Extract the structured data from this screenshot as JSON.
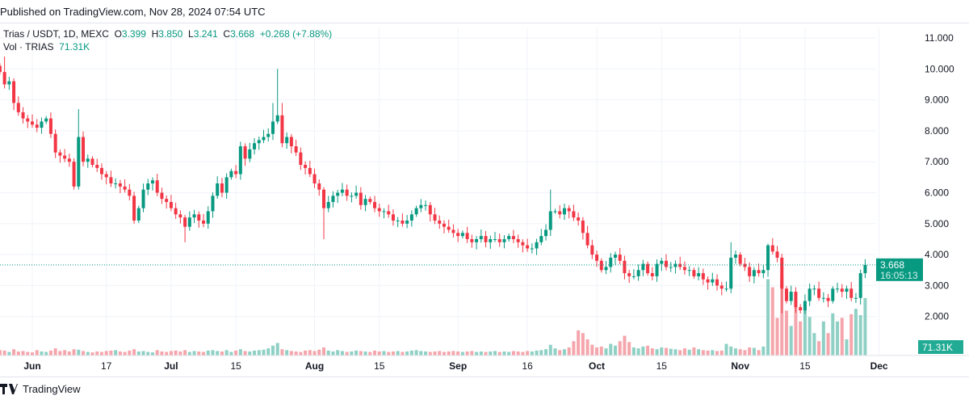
{
  "header": {
    "published": "Published on TradingView.com, Nov 28, 2024 07:54 UTC"
  },
  "legend": {
    "symbol": "Trias / USDT, 1D, MEXC",
    "o_label": "O",
    "o": "3.399",
    "h_label": "H",
    "h": "3.850",
    "l_label": "L",
    "l": "3.241",
    "c_label": "C",
    "c": "3.668",
    "change": "+0.268 (+7.88%)",
    "vol_label": "Vol · TRIAS",
    "vol": "71.31K"
  },
  "footer": {
    "brand": "TradingView"
  },
  "colors": {
    "up": "#089981",
    "down": "#f23645",
    "up_vol": "#8fd0c5",
    "down_vol": "#f5a6ac",
    "grid": "#f0f3fa"
  },
  "chart_data": {
    "type": "candlestick",
    "title": "Trias / USDT, 1D, MEXC",
    "start_date": "2024-05-25",
    "end_date": "2024-11-28",
    "ylim": [
      1.0,
      11.4
    ],
    "grid": true,
    "y_ticks": [
      "11.000",
      "10.000",
      "9.000",
      "8.000",
      "7.000",
      "6.000",
      "5.000",
      "4.000",
      "3.000",
      "2.000"
    ],
    "x_ticks": [
      {
        "label": "Jun",
        "day": 7,
        "bold": true
      },
      {
        "label": "17",
        "day": 23
      },
      {
        "label": "Jul",
        "day": 37,
        "bold": true
      },
      {
        "label": "15",
        "day": 51
      },
      {
        "label": "Aug",
        "day": 68,
        "bold": true
      },
      {
        "label": "15",
        "day": 82
      },
      {
        "label": "Sep",
        "day": 99,
        "bold": true
      },
      {
        "label": "16",
        "day": 114
      },
      {
        "label": "Oct",
        "day": 129,
        "bold": true
      },
      {
        "label": "15",
        "day": 143
      },
      {
        "label": "Nov",
        "day": 160,
        "bold": true
      },
      {
        "label": "15",
        "day": 174
      },
      {
        "label": "Dec",
        "day": 190,
        "bold": true
      }
    ],
    "first_open": 10.1,
    "close": [
      9.9,
      9.5,
      9.6,
      8.9,
      8.6,
      8.4,
      8.3,
      8.2,
      8.1,
      8.3,
      8.4,
      7.9,
      7.3,
      7.2,
      7.1,
      7.0,
      6.2,
      7.8,
      7.0,
      7.1,
      6.9,
      6.8,
      6.6,
      6.5,
      6.3,
      6.3,
      6.2,
      6.1,
      5.9,
      5.1,
      5.5,
      6.1,
      6.3,
      6.4,
      6.0,
      5.8,
      5.7,
      5.5,
      5.3,
      5.2,
      4.9,
      5.2,
      5.3,
      5.1,
      5.0,
      5.4,
      5.9,
      6.3,
      6.0,
      6.5,
      6.7,
      6.6,
      7.5,
      7.1,
      7.4,
      7.6,
      7.7,
      7.8,
      7.9,
      8.3,
      8.5,
      7.6,
      7.8,
      7.5,
      7.3,
      6.9,
      6.8,
      6.6,
      6.3,
      6.1,
      5.5,
      5.7,
      5.9,
      6.0,
      6.1,
      5.9,
      5.9,
      6.0,
      5.6,
      5.8,
      5.7,
      5.5,
      5.4,
      5.4,
      5.3,
      5.1,
      5.1,
      5.0,
      5.1,
      5.3,
      5.5,
      5.6,
      5.6,
      5.3,
      5.1,
      5.0,
      4.9,
      4.8,
      4.7,
      4.6,
      4.7,
      4.5,
      4.4,
      4.5,
      4.6,
      4.4,
      4.5,
      4.5,
      4.4,
      4.5,
      4.6,
      4.5,
      4.4,
      4.3,
      4.2,
      4.2,
      4.4,
      4.6,
      4.8,
      5.4,
      5.4,
      5.3,
      5.5,
      5.4,
      5.2,
      5.1,
      4.7,
      4.3,
      4.0,
      3.8,
      3.5,
      3.6,
      3.9,
      4.0,
      3.8,
      3.4,
      3.3,
      3.3,
      3.5,
      3.7,
      3.4,
      3.3,
      3.7,
      3.8,
      3.6,
      3.6,
      3.7,
      3.6,
      3.5,
      3.5,
      3.3,
      3.4,
      3.2,
      3.1,
      3.2,
      3.0,
      2.9,
      2.9,
      3.9,
      4.0,
      3.7,
      3.6,
      3.3,
      3.5,
      3.4,
      3.5,
      4.3,
      4.1,
      3.9,
      2.9,
      2.5,
      2.8,
      2.3,
      2.2,
      2.5,
      2.9,
      2.9,
      2.6,
      2.6,
      2.5,
      2.9,
      2.9,
      2.8,
      2.9,
      2.6,
      2.6,
      3.399,
      3.668
    ],
    "notable_highs": {
      "1": 10.4,
      "17": 8.7,
      "59": 8.9,
      "60": 10.0,
      "61": 8.9,
      "119": 6.1,
      "158": 4.4,
      "166": 4.35,
      "187": 3.85
    },
    "notable_lows": {
      "16": 6.1,
      "29": 5.0,
      "40": 4.4,
      "70": 4.5,
      "135": 3.2,
      "169": 2.1,
      "173": 2.1,
      "187": 3.241
    },
    "volume_k": [
      60,
      55,
      40,
      70,
      45,
      50,
      40,
      35,
      60,
      45,
      40,
      55,
      80,
      50,
      60,
      45,
      70,
      65,
      50,
      40,
      35,
      45,
      40,
      50,
      55,
      60,
      45,
      40,
      55,
      70,
      45,
      50,
      40,
      35,
      60,
      45,
      40,
      50,
      55,
      45,
      60,
      40,
      50,
      45,
      40,
      55,
      60,
      50,
      45,
      60,
      40,
      55,
      70,
      50,
      45,
      55,
      60,
      65,
      80,
      110,
      140,
      70,
      60,
      50,
      45,
      40,
      55,
      60,
      50,
      65,
      90,
      55,
      45,
      60,
      50,
      40,
      45,
      55,
      50,
      45,
      40,
      55,
      45,
      50,
      40,
      45,
      50,
      40,
      45,
      55,
      60,
      50,
      45,
      40,
      45,
      50,
      40,
      45,
      50,
      45,
      40,
      45,
      50,
      40,
      45,
      40,
      45,
      50,
      40,
      45,
      40,
      50,
      45,
      40,
      50,
      45,
      55,
      60,
      70,
      120,
      80,
      60,
      70,
      90,
      160,
      280,
      250,
      180,
      120,
      90,
      100,
      80,
      130,
      110,
      160,
      220,
      150,
      90,
      80,
      100,
      110,
      80,
      70,
      90,
      85,
      75,
      70,
      60,
      80,
      65,
      90,
      70,
      60,
      55,
      60,
      50,
      55,
      130,
      100,
      80,
      70,
      60,
      90,
      85,
      60,
      100,
      850,
      760,
      420,
      880,
      500,
      330,
      560,
      380,
      520,
      430,
      250,
      160,
      380,
      250,
      470,
      380,
      420,
      180,
      460,
      520,
      450,
      640,
      71.31
    ]
  }
}
